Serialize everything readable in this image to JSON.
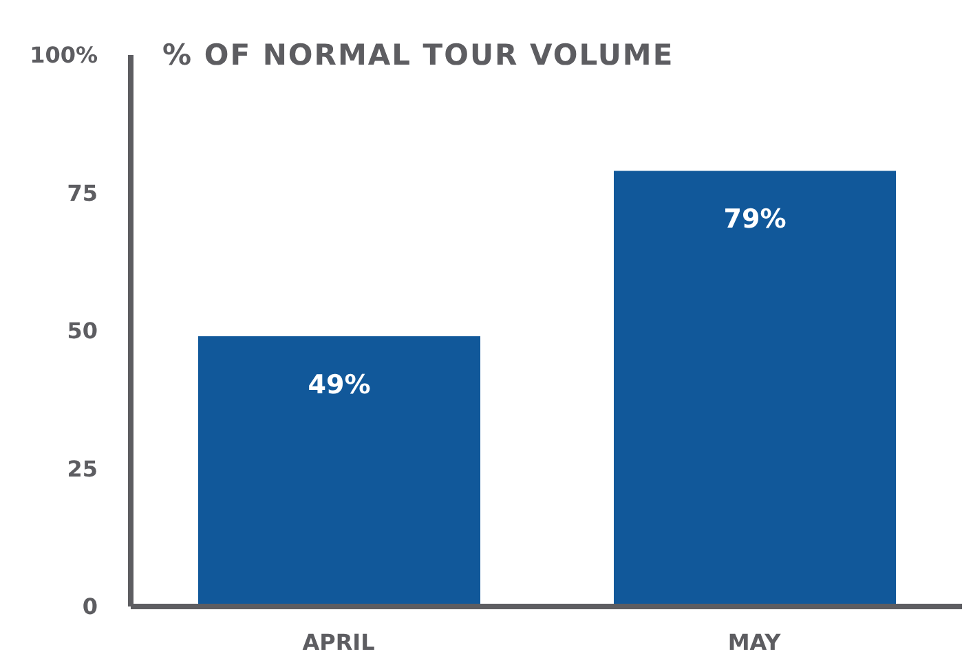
{
  "chart_data": {
    "type": "bar",
    "title": "% OF NORMAL TOUR VOLUME",
    "categories": [
      "APRIL",
      "MAY"
    ],
    "values": [
      49,
      79
    ],
    "color": "#11589a",
    "value_labels": [
      "49%",
      "79%"
    ],
    "ylim": [
      0,
      100
    ],
    "yticks": [
      0,
      25,
      50,
      75,
      {
        "value": 100,
        "label": "100%"
      }
    ],
    "grid": false,
    "legend": false
  }
}
